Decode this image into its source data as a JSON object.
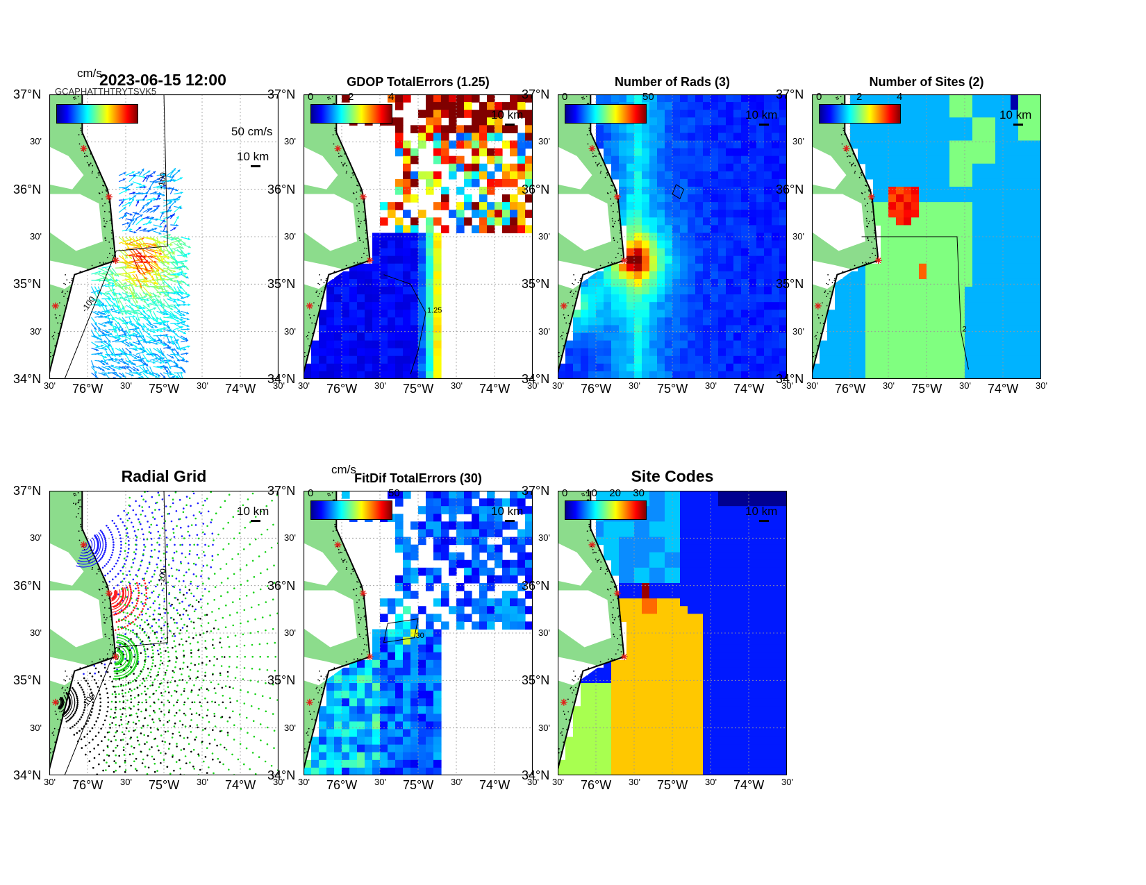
{
  "figure": {
    "timestamp": "2023-06-15 12:00",
    "overlap_text": "GCAPHATTHTRYTSVK5"
  },
  "axes": {
    "x_major": [
      "76°W",
      "75°W",
      "74°W"
    ],
    "x_minor": [
      "30'",
      "30'",
      "30'",
      "30'"
    ],
    "y_major": [
      "37°N",
      "36°N",
      "35°N",
      "34°N"
    ],
    "y_minor": [
      "30'",
      "30'",
      "30'"
    ],
    "lon_range": [
      -76.5,
      -73.5
    ],
    "lat_range": [
      34,
      37
    ],
    "grid": true
  },
  "colors": {
    "land": "#8cdc8c",
    "site_marker": "#e0201a",
    "contour": "#000000",
    "jet": [
      "#00008f",
      "#0000ff",
      "#0080ff",
      "#00ffff",
      "#80ff80",
      "#ffff00",
      "#ff8000",
      "#ff0000",
      "#800000"
    ]
  },
  "panels": [
    {
      "key": "totals",
      "title": "",
      "colorbar_unit": "cm/s",
      "colorbar_ticks": [],
      "scale_text": "10 km",
      "vector_scale": "50 cm/s",
      "contour_label": "-100",
      "contour_label2": "-100"
    },
    {
      "key": "gdop",
      "title": "GDOP TotalErrors (1.25)",
      "colorbar_unit": "",
      "colorbar_ticks": [
        "0",
        "2",
        "4"
      ],
      "scale_text": "10 km",
      "contour_label": "1.25"
    },
    {
      "key": "nrads",
      "title": "Number of Rads (3)",
      "colorbar_unit": "",
      "colorbar_ticks": [
        "0",
        "50"
      ],
      "scale_text": "10 km",
      "contour_label": "3"
    },
    {
      "key": "nsites",
      "title": "Number of Sites (2)",
      "colorbar_unit": "",
      "colorbar_ticks": [
        "0",
        "2",
        "4"
      ],
      "scale_text": "10 km",
      "contour_label": "2"
    },
    {
      "key": "radgrid",
      "title": "Radial Grid",
      "colorbar_unit": "",
      "colorbar_ticks": [],
      "scale_text": "10 km",
      "contour_label": "-100",
      "contour_label2": "-100"
    },
    {
      "key": "fitdif",
      "title": "FitDif TotalErrors (30)",
      "colorbar_unit": "cm/s",
      "colorbar_ticks": [
        "0",
        "50"
      ],
      "scale_text": "10 km",
      "contour_label": "30"
    },
    {
      "key": "sitecodes",
      "title": "Site Codes",
      "colorbar_unit": "",
      "colorbar_ticks": [
        "0",
        "10",
        "20",
        "30"
      ],
      "scale_text": "10 km",
      "contour_label": ""
    }
  ],
  "chart_data": [
    {
      "type": "heatmap",
      "panel": "2023-06-15 12:00",
      "variable": "total current vectors",
      "units": "cm/s",
      "reference_vector_cm_s": 50,
      "sites": [
        {
          "lon": -76.05,
          "lat": 36.43
        },
        {
          "lon": -75.72,
          "lat": 35.92
        },
        {
          "lon": -75.63,
          "lat": 35.25
        },
        {
          "lon": -76.42,
          "lat": 34.77
        }
      ],
      "isobath_label": "-100"
    },
    {
      "type": "heatmap",
      "panel": "GDOP TotalErrors (1.25)",
      "colorbar_range": [
        0,
        4
      ],
      "contour_level": 1.25
    },
    {
      "type": "heatmap",
      "panel": "Number of Rads (3)",
      "colorbar_range": [
        0,
        50
      ],
      "contour_level": 3
    },
    {
      "type": "heatmap",
      "panel": "Number of Sites (2)",
      "colorbar_range": [
        0,
        4
      ],
      "contour_level": 2
    },
    {
      "type": "scatter",
      "panel": "Radial Grid",
      "series": [
        {
          "color": "blue"
        },
        {
          "color": "red"
        },
        {
          "color": "green"
        },
        {
          "color": "black"
        }
      ]
    },
    {
      "type": "heatmap",
      "panel": "FitDif TotalErrors (30)",
      "units": "cm/s",
      "colorbar_range": [
        0,
        50
      ],
      "contour_level": 30
    },
    {
      "type": "heatmap",
      "panel": "Site Codes",
      "colorbar_range": [
        0,
        30
      ]
    }
  ]
}
